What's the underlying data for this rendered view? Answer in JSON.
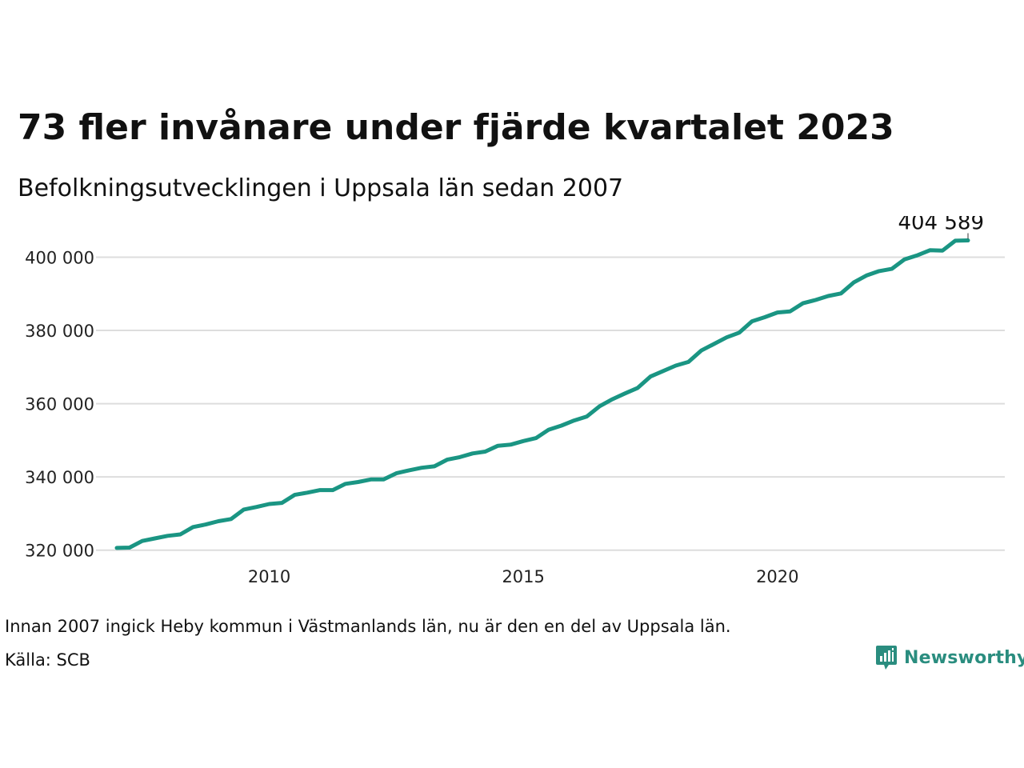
{
  "title": "73 fler invånare under fjärde kvartalet 2023",
  "subtitle": "Befolkningsutvecklingen i Uppsala län sedan 2007",
  "footnote": "Innan 2007 ingick Heby kommun i Västmanlands län, nu är den en del av Uppsala län.",
  "source": "Källa: SCB",
  "brand": {
    "name": "Newsworthy",
    "logo_icon": "bar-chart-speech-bubble-icon",
    "color": "#2a8d7f"
  },
  "colors": {
    "line": "#1a9583",
    "grid": "#dddddd"
  },
  "chart_data": {
    "type": "line",
    "title": "73 fler invånare under fjärde kvartalet 2023",
    "subtitle": "Befolkningsutvecklingen i Uppsala län sedan 2007",
    "xlabel": "",
    "ylabel": "",
    "xlim": [
      2007.0,
      2023.75
    ],
    "ylim": [
      316000,
      406000
    ],
    "x_ticks": [
      2010,
      2015,
      2020
    ],
    "x_tick_labels": [
      "2010",
      "2015",
      "2020"
    ],
    "y_ticks": [
      320000,
      340000,
      360000,
      380000,
      400000
    ],
    "y_tick_labels": [
      "320 000",
      "340 000",
      "360 000",
      "380 000",
      "400 000"
    ],
    "grid": "horizontal",
    "legend": "none",
    "x": [
      2007.0,
      2007.25,
      2007.5,
      2007.75,
      2008.0,
      2008.25,
      2008.5,
      2008.75,
      2009.0,
      2009.25,
      2009.5,
      2009.75,
      2010.0,
      2010.25,
      2010.5,
      2010.75,
      2011.0,
      2011.25,
      2011.5,
      2011.75,
      2012.0,
      2012.25,
      2012.5,
      2012.75,
      2013.0,
      2013.25,
      2013.5,
      2013.75,
      2014.0,
      2014.25,
      2014.5,
      2014.75,
      2015.0,
      2015.25,
      2015.5,
      2015.75,
      2016.0,
      2016.25,
      2016.5,
      2016.75,
      2017.0,
      2017.25,
      2017.5,
      2017.75,
      2018.0,
      2018.25,
      2018.5,
      2018.75,
      2019.0,
      2019.25,
      2019.5,
      2019.75,
      2020.0,
      2020.25,
      2020.5,
      2020.75,
      2021.0,
      2021.25,
      2021.5,
      2021.75,
      2022.0,
      2022.25,
      2022.5,
      2022.75,
      2023.0,
      2023.25,
      2023.5,
      2023.75
    ],
    "series": [
      {
        "values": [
          320600,
          320700,
          322500,
          323200,
          323900,
          324300,
          326300,
          327000,
          327900,
          328500,
          331100,
          331800,
          332600,
          332900,
          335100,
          335700,
          336400,
          336400,
          338100,
          338600,
          339300,
          339300,
          341000,
          341800,
          342500,
          342900,
          344700,
          345400,
          346400,
          346900,
          348500,
          348800,
          349800,
          350600,
          352900,
          354000,
          355400,
          356500,
          359300,
          361200,
          362800,
          364300,
          367400,
          368900,
          370400,
          371400,
          374500,
          376300,
          378100,
          379400,
          382500,
          383600,
          384900,
          385200,
          387400,
          388300,
          389400,
          390100,
          393100,
          395000,
          396200,
          396800,
          399400,
          400500,
          401900,
          401800,
          404500,
          404589
        ]
      }
    ],
    "annotations": [
      {
        "x": 2023.75,
        "y": 404589,
        "text": "404 589"
      }
    ]
  }
}
